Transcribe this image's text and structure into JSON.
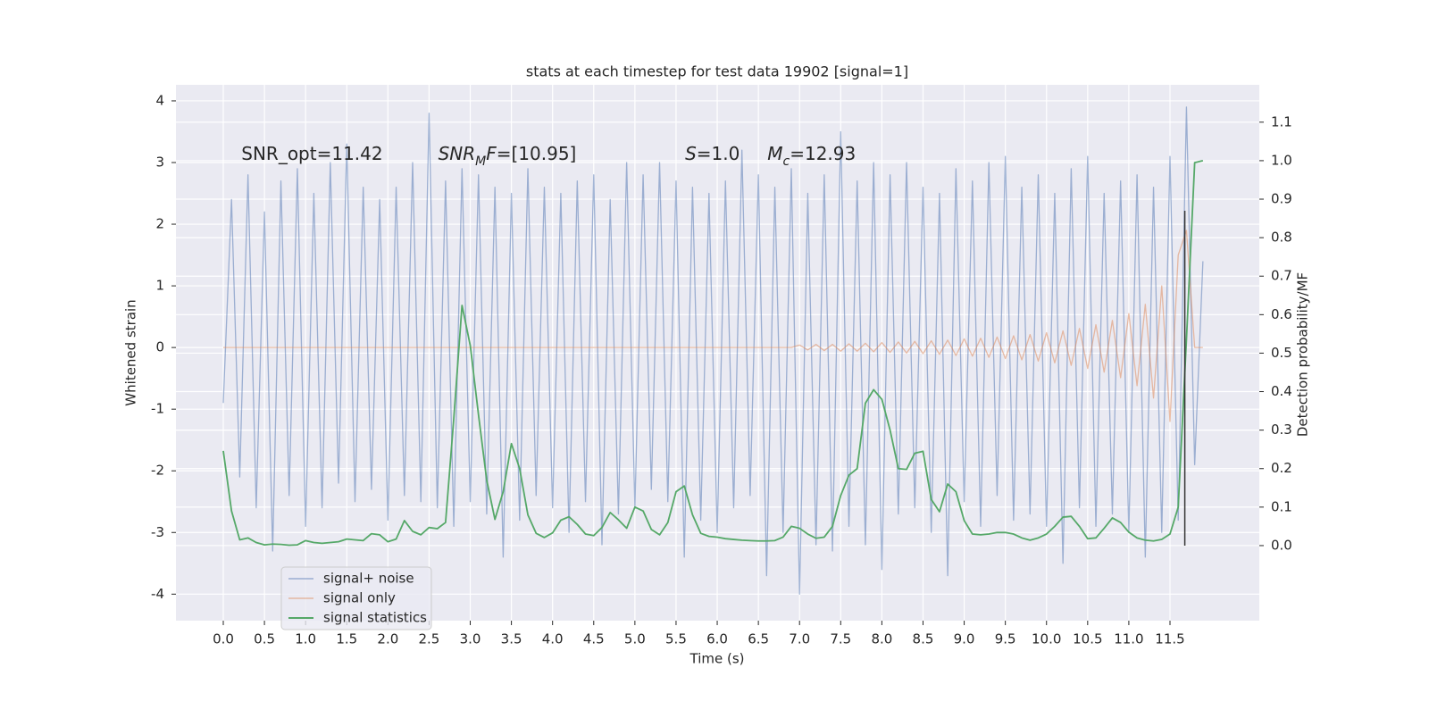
{
  "chart_data": {
    "type": "line",
    "title": "stats at each timestep for test data 19902 [signal=1]",
    "x_label": "Time (s)",
    "y_label": "Whitened strain",
    "y2_label": "Detection probability/MF",
    "x": [
      0,
      0.1,
      0.2,
      0.3,
      0.4,
      0.5,
      0.6,
      0.7,
      0.8,
      0.9,
      1,
      1.1,
      1.2,
      1.3,
      1.4,
      1.5,
      1.6,
      1.7,
      1.8,
      1.9,
      2,
      2.1,
      2.2,
      2.3,
      2.4,
      2.5,
      2.6,
      2.7,
      2.8,
      2.9,
      3,
      3.1,
      3.2,
      3.3,
      3.4,
      3.5,
      3.6,
      3.7,
      3.8,
      3.9,
      4,
      4.1,
      4.2,
      4.3,
      4.4,
      4.5,
      4.6,
      4.7,
      4.8,
      4.9,
      5,
      5.1,
      5.2,
      5.3,
      5.4,
      5.5,
      5.6,
      5.7,
      5.8,
      5.9,
      6,
      6.1,
      6.2,
      6.3,
      6.4,
      6.5,
      6.6,
      6.7,
      6.8,
      6.9,
      7,
      7.1,
      7.2,
      7.3,
      7.4,
      7.5,
      7.6,
      7.7,
      7.8,
      7.9,
      8,
      8.1,
      8.2,
      8.3,
      8.4,
      8.5,
      8.6,
      8.7,
      8.8,
      8.9,
      9,
      9.1,
      9.2,
      9.3,
      9.4,
      9.5,
      9.6,
      9.7,
      9.8,
      9.9,
      10,
      10.1,
      10.2,
      10.3,
      10.4,
      10.5,
      10.6,
      10.7,
      10.8,
      10.9,
      11,
      11.1,
      11.2,
      11.3,
      11.4,
      11.5,
      11.6,
      11.7,
      11.8,
      11.9
    ],
    "series": [
      {
        "name": "signal+ noise",
        "color": "#4c72b0",
        "axis": "y",
        "values": [
          -0.9,
          2.4,
          -2.1,
          2.8,
          -2.6,
          2.2,
          -3.3,
          2.7,
          -2.4,
          2.9,
          -2.9,
          2.5,
          -2.6,
          3.0,
          -2.2,
          3.3,
          -2.5,
          2.6,
          -2.3,
          2.4,
          -2.8,
          2.6,
          -2.4,
          3.0,
          -2.5,
          3.8,
          -2.6,
          2.7,
          -2.9,
          2.9,
          -2.5,
          2.8,
          -2.7,
          2.6,
          -3.4,
          2.5,
          -2.8,
          2.9,
          -2.4,
          2.6,
          -2.6,
          2.5,
          -3.0,
          2.7,
          -2.5,
          2.8,
          -3.2,
          2.4,
          -2.7,
          3.0,
          -2.6,
          2.8,
          -2.3,
          3.0,
          -2.5,
          2.7,
          -3.4,
          2.6,
          -2.8,
          2.5,
          -3.0,
          2.7,
          -2.6,
          3.2,
          -2.4,
          2.8,
          -3.7,
          2.6,
          -3.0,
          2.9,
          -4.0,
          2.5,
          -3.2,
          2.8,
          -3.3,
          3.5,
          -2.9,
          2.7,
          -3.2,
          3.0,
          -3.6,
          2.8,
          -2.7,
          3.0,
          -2.6,
          2.6,
          -3.0,
          2.5,
          -3.7,
          2.9,
          -2.5,
          2.7,
          -2.9,
          3.0,
          -2.4,
          3.1,
          -2.8,
          2.6,
          -2.7,
          2.8,
          -2.9,
          2.5,
          -3.5,
          2.9,
          -2.6,
          3.1,
          -2.9,
          2.5,
          -2.7,
          2.7,
          -3.0,
          2.8,
          -3.4,
          2.6,
          -3.0,
          3.1,
          -2.8,
          3.9,
          -1.9,
          1.4
        ]
      },
      {
        "name": "signal only",
        "color": "#dd8452",
        "axis": "y",
        "values": [
          0,
          0,
          0,
          0,
          0,
          0,
          0,
          0,
          0,
          0,
          0,
          0,
          0,
          0,
          0,
          0,
          0,
          0,
          0,
          0,
          0,
          0,
          0,
          0,
          0,
          0,
          0,
          0,
          0,
          0,
          0,
          0,
          0,
          0,
          0,
          0,
          0,
          0,
          0,
          0,
          0,
          0,
          0,
          0,
          0,
          0,
          0,
          0,
          0,
          0,
          0,
          0,
          0,
          0,
          0,
          0,
          0,
          0,
          0,
          0,
          0,
          0,
          0,
          0,
          0,
          0,
          0,
          0,
          0,
          0,
          0.04,
          -0.04,
          0.05,
          -0.05,
          0.05,
          -0.06,
          0.06,
          -0.06,
          0.07,
          -0.07,
          0.08,
          -0.08,
          0.09,
          -0.09,
          0.1,
          -0.1,
          0.11,
          -0.11,
          0.12,
          -0.13,
          0.14,
          -0.14,
          0.15,
          -0.16,
          0.17,
          -0.18,
          0.19,
          -0.2,
          0.21,
          -0.22,
          0.24,
          -0.25,
          0.27,
          -0.29,
          0.31,
          -0.34,
          0.37,
          -0.4,
          0.44,
          -0.49,
          0.55,
          -0.62,
          0.7,
          -0.82,
          1.0,
          -1.2,
          1.5,
          1.9,
          0,
          0
        ]
      },
      {
        "name": "signal statistics",
        "color": "#55a868",
        "axis": "y2",
        "values": [
          0.246,
          0.09,
          0.015,
          0.02,
          0.008,
          0.002,
          0.004,
          0.003,
          0.001,
          0.002,
          0.013,
          0.008,
          0.006,
          0.008,
          0.01,
          0.017,
          0.015,
          0.013,
          0.031,
          0.028,
          0.01,
          0.017,
          0.065,
          0.037,
          0.028,
          0.047,
          0.044,
          0.06,
          0.33,
          0.624,
          0.52,
          0.34,
          0.17,
          0.068,
          0.14,
          0.265,
          0.2,
          0.08,
          0.032,
          0.021,
          0.033,
          0.066,
          0.075,
          0.055,
          0.03,
          0.026,
          0.047,
          0.086,
          0.067,
          0.045,
          0.1,
          0.09,
          0.042,
          0.028,
          0.06,
          0.14,
          0.155,
          0.08,
          0.032,
          0.024,
          0.022,
          0.018,
          0.016,
          0.014,
          0.013,
          0.012,
          0.012,
          0.013,
          0.022,
          0.05,
          0.045,
          0.03,
          0.019,
          0.022,
          0.05,
          0.13,
          0.183,
          0.2,
          0.37,
          0.405,
          0.38,
          0.3,
          0.2,
          0.198,
          0.24,
          0.245,
          0.12,
          0.088,
          0.16,
          0.14,
          0.065,
          0.03,
          0.028,
          0.03,
          0.034,
          0.034,
          0.03,
          0.02,
          0.014,
          0.02,
          0.03,
          0.05,
          0.074,
          0.076,
          0.05,
          0.018,
          0.02,
          0.045,
          0.072,
          0.06,
          0.035,
          0.02,
          0.014,
          0.012,
          0.016,
          0.03,
          0.1,
          0.536,
          0.995,
          1.0
        ]
      }
    ],
    "vlines": [
      {
        "x": 11.68,
        "ymin": 0,
        "ymax": 0.87,
        "axis": "y2",
        "color": "#333333"
      }
    ],
    "annotations": [
      {
        "x": 0.22,
        "y": 3.13,
        "parts": [
          {
            "text": "SNR_opt=11.42"
          }
        ]
      },
      {
        "x": 2.61,
        "y": 3.13,
        "parts": [
          {
            "text": "SNR",
            "italic": true
          },
          {
            "text": "M",
            "italic": true,
            "sub": true
          },
          {
            "text": "F",
            "italic": true
          },
          {
            "text": "=[10.95]"
          }
        ]
      },
      {
        "x": 5.61,
        "y": 3.13,
        "parts": [
          {
            "text": "S",
            "italic": true
          },
          {
            "text": "=1.0"
          }
        ]
      },
      {
        "x": 6.61,
        "y": 3.13,
        "parts": [
          {
            "text": "M",
            "italic": true
          },
          {
            "text": "c",
            "italic": true,
            "sub": true
          },
          {
            "text": "=12.93"
          }
        ]
      }
    ],
    "xlim": [
      -0.575,
      12.585
    ],
    "xticks": [
      {
        "value": 0,
        "label": "0.0"
      },
      0.5,
      {
        "value": 1,
        "label": "1.0"
      },
      1.5,
      {
        "value": 2,
        "label": "2.0"
      },
      2.5,
      {
        "value": 3,
        "label": "3.0"
      },
      3.5,
      {
        "value": 4,
        "label": "4.0"
      },
      4.5,
      {
        "value": 5,
        "label": "5.0"
      },
      5.5,
      {
        "value": 6,
        "label": "6.0"
      },
      6.5,
      {
        "value": 7,
        "label": "7.0"
      },
      7.5,
      {
        "value": 8,
        "label": "8.0"
      },
      8.5,
      {
        "value": 9,
        "label": "9.0"
      },
      9.5,
      {
        "value": 10,
        "label": "10.0"
      },
      10.5,
      {
        "value": 11,
        "label": "11.0"
      },
      11.5
    ],
    "ylim": [
      -4.43,
      4.26
    ],
    "yticks": [
      -4,
      -3,
      -2,
      -1,
      0,
      1,
      2,
      3,
      4
    ],
    "y2lim": [
      -0.195,
      1.197
    ],
    "y2ticks": [
      {
        "value": 0,
        "label": "0.0"
      },
      0.1,
      0.2,
      0.3,
      0.4,
      0.5,
      0.6,
      0.7,
      0.8,
      0.9,
      {
        "value": 1,
        "label": "1.0"
      },
      1.1
    ],
    "grid": true,
    "legend": "lower left"
  }
}
